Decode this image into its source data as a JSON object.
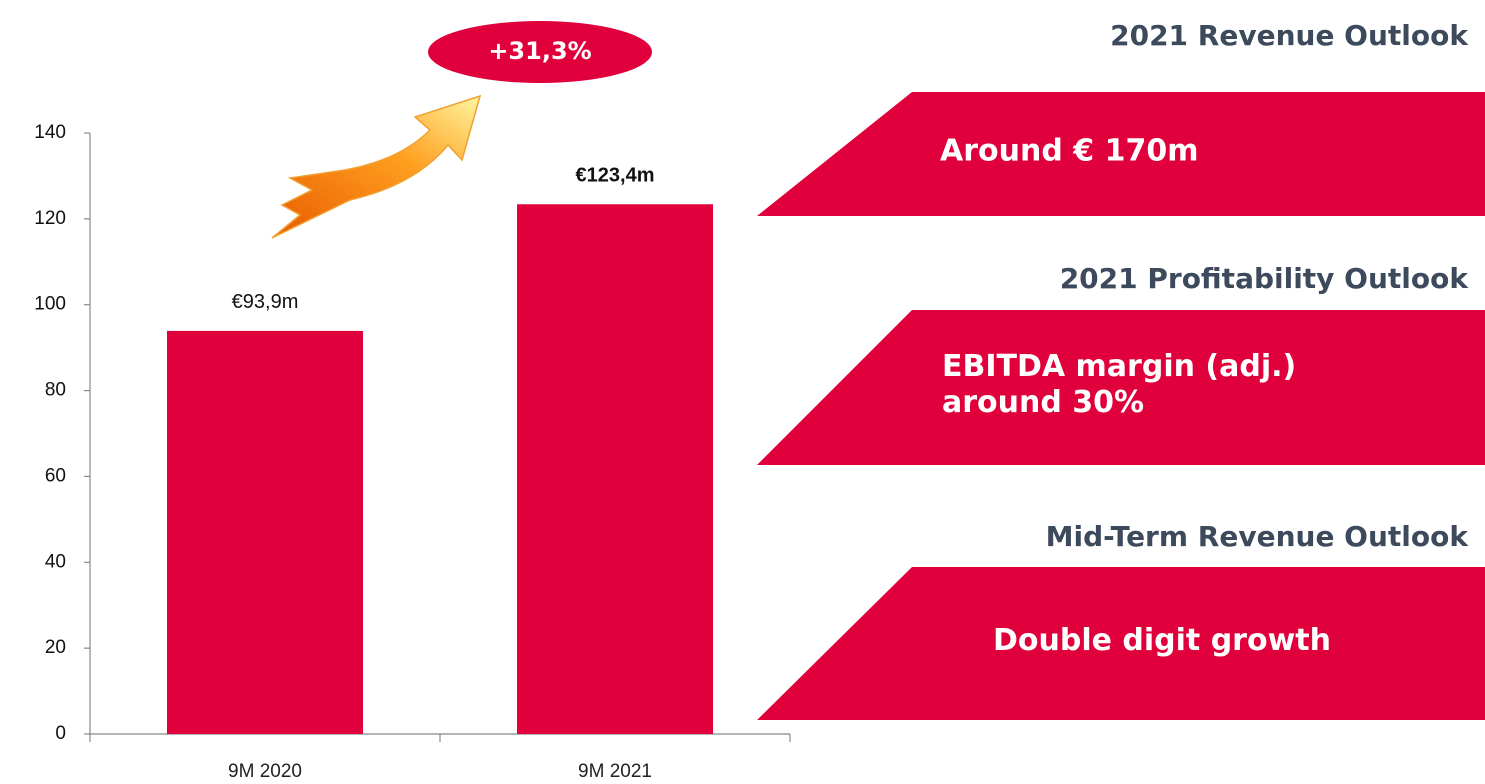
{
  "chart_data": {
    "type": "bar",
    "categories": [
      "9M 2020",
      "9M 2021"
    ],
    "values": [
      93.9,
      123.4
    ],
    "value_labels": [
      "€93,9m",
      "€123,4m"
    ],
    "color": "#e0003c",
    "ylim": [
      0,
      140
    ],
    "yticks": [
      0,
      20,
      40,
      60,
      80,
      100,
      120,
      140
    ],
    "annotation": "+31,3%"
  },
  "outlook": [
    {
      "heading": "2021 Revenue Outlook",
      "lines": [
        "Around € 170m"
      ]
    },
    {
      "heading": "2021 Profitability Outlook",
      "lines": [
        "EBITDA margin (adj.)",
        "around 30%"
      ]
    },
    {
      "heading": "Mid-Term Revenue Outlook",
      "lines": [
        "Double digit growth"
      ]
    }
  ]
}
